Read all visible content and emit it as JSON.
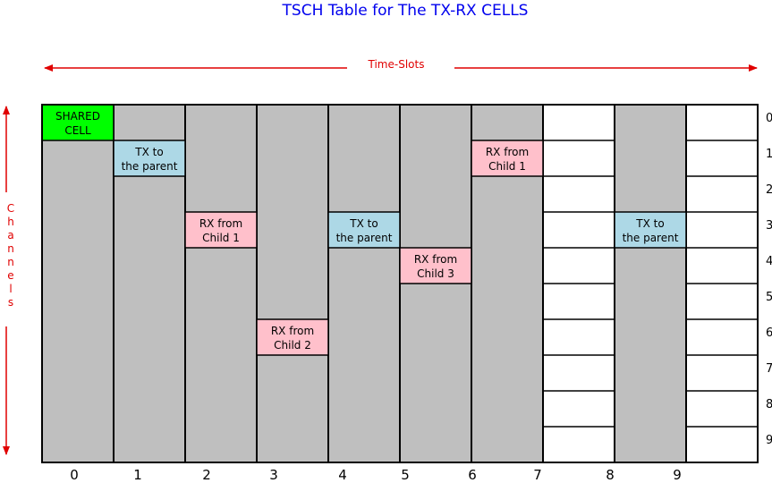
{
  "title": "TSCH Table for The TX-RX CELLS",
  "x_axis_label": "Time-Slots",
  "y_axis_label": "Channels",
  "columns": [
    "0",
    "1",
    "2",
    "3",
    "4",
    "5",
    "6",
    "7",
    "8",
    "9"
  ],
  "rows": [
    "0",
    "1",
    "2",
    "3",
    "4",
    "5",
    "6",
    "7",
    "8",
    "9"
  ],
  "column_fills": [
    "gray",
    "gray",
    "gray",
    "gray",
    "gray",
    "gray",
    "gray",
    "white",
    "gray",
    "white"
  ],
  "colors": {
    "gray": "#bfbfbf",
    "white": "#ffffff",
    "shared": "#00ff00",
    "tx": "#add8e6",
    "rx": "#ffc0cb",
    "title": "#0000ee",
    "label": "#e00000"
  },
  "cells": [
    {
      "col": 0,
      "row": 0,
      "kind": "shared",
      "line1": "SHARED",
      "line2": "CELL"
    },
    {
      "col": 1,
      "row": 1,
      "kind": "tx",
      "line1": "TX to",
      "line2": "the parent"
    },
    {
      "col": 2,
      "row": 3,
      "kind": "rx",
      "line1": "RX from",
      "line2": "Child 1"
    },
    {
      "col": 3,
      "row": 6,
      "kind": "rx",
      "line1": "RX from",
      "line2": "Child 2"
    },
    {
      "col": 4,
      "row": 3,
      "kind": "tx",
      "line1": "TX to",
      "line2": "the parent"
    },
    {
      "col": 5,
      "row": 4,
      "kind": "rx",
      "line1": "RX from",
      "line2": "Child 3"
    },
    {
      "col": 6,
      "row": 1,
      "kind": "rx",
      "line1": "RX from",
      "line2": "Child 1"
    },
    {
      "col": 8,
      "row": 3,
      "kind": "tx",
      "line1": "TX to",
      "line2": "the parent"
    }
  ]
}
